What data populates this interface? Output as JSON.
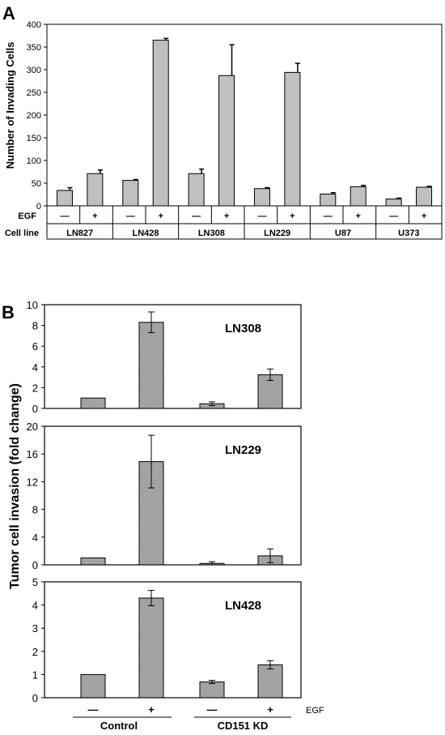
{
  "chart_data": [
    {
      "panel": "A",
      "type": "bar",
      "ylabel": "Number of Invading Cells",
      "ylim": [
        0,
        400
      ],
      "yticks": [
        0,
        50,
        100,
        150,
        200,
        250,
        300,
        350,
        400
      ],
      "row_labels": {
        "egf": "EGF",
        "cell_line": "Cell line"
      },
      "categories": [
        "LN827",
        "LN428",
        "LN308",
        "LN229",
        "U87",
        "U373"
      ],
      "conditions": [
        "—",
        "+"
      ],
      "bar_color": "#c0c0c0",
      "values": [
        [
          34,
          71
        ],
        [
          56,
          365
        ],
        [
          71,
          287
        ],
        [
          38,
          294
        ],
        [
          26,
          42
        ],
        [
          15,
          41
        ]
      ],
      "errors": [
        [
          6,
          8
        ],
        [
          2,
          4
        ],
        [
          10,
          68
        ],
        [
          2,
          20
        ],
        [
          3,
          3
        ],
        [
          2,
          2
        ]
      ]
    },
    {
      "panel": "B",
      "type": "bar",
      "ylabel": "Tumor cell invasion (fold change)",
      "groups": [
        "Control",
        "CD151 KD"
      ],
      "conditions": [
        "—",
        "+",
        "—",
        "+"
      ],
      "egf_label": "EGF",
      "bar_color": "#a6a6a6",
      "subplots": [
        {
          "title": "LN308",
          "ylim": [
            0,
            10
          ],
          "yticks": [
            0,
            2,
            4,
            6,
            8,
            10
          ],
          "values": [
            1,
            8.3,
            0.45,
            3.25
          ],
          "errors": [
            0,
            1.0,
            0.18,
            0.55
          ]
        },
        {
          "title": "LN229",
          "ylim": [
            0,
            20
          ],
          "yticks": [
            0,
            4,
            8,
            12,
            16,
            20
          ],
          "values": [
            1,
            14.9,
            0.2,
            1.3
          ],
          "errors": [
            0,
            3.8,
            0.25,
            1.0
          ]
        },
        {
          "title": "LN428",
          "ylim": [
            0,
            5
          ],
          "yticks": [
            0,
            1,
            2,
            3,
            4,
            5
          ],
          "values": [
            1,
            4.3,
            0.68,
            1.42
          ],
          "errors": [
            0,
            0.33,
            0.07,
            0.18
          ]
        }
      ]
    }
  ]
}
